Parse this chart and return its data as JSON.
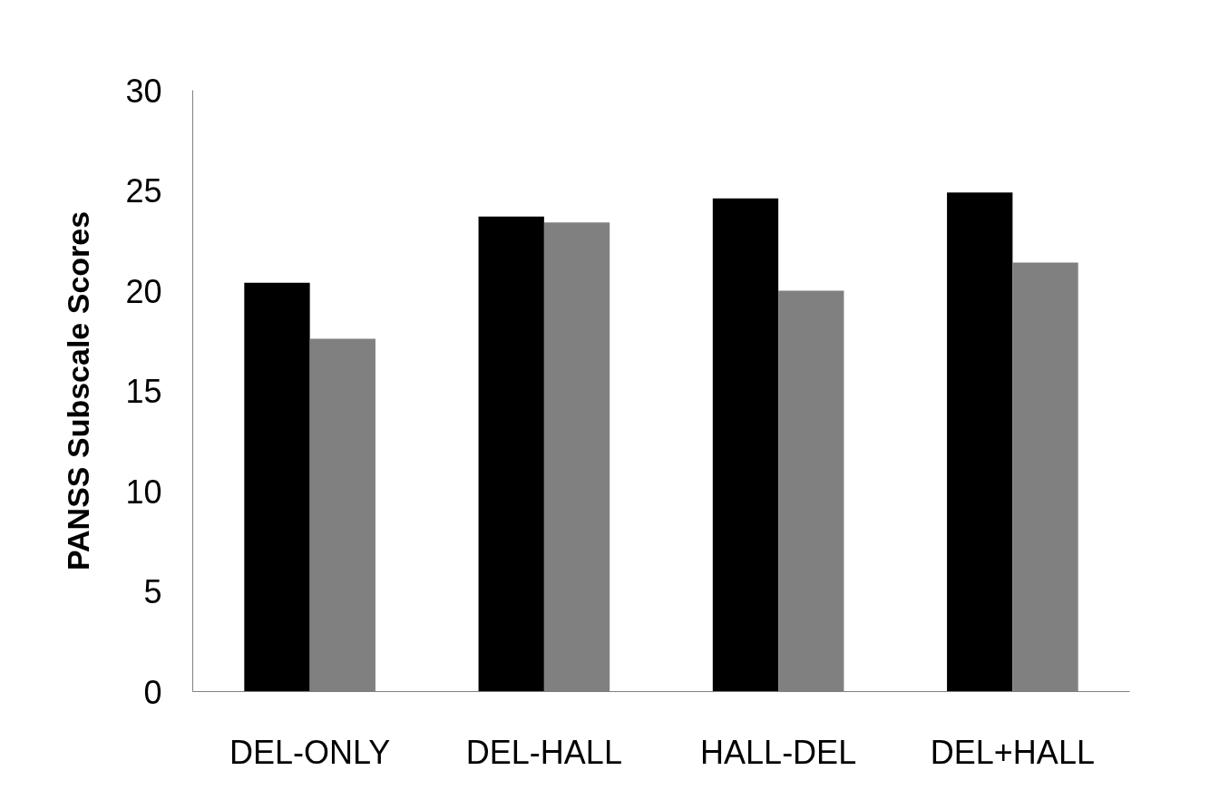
{
  "chart_data": {
    "type": "bar",
    "ylabel": "PANSS Subscale Scores",
    "categories": [
      "DEL-ONLY",
      "DEL-HALL",
      "HALL-DEL",
      "DEL+HALL"
    ],
    "series": [
      {
        "color": "#000000",
        "values": [
          20.4,
          23.7,
          24.6,
          24.9
        ]
      },
      {
        "color": "#808080",
        "values": [
          17.6,
          23.4,
          20.0,
          21.4
        ]
      }
    ],
    "ylim": [
      0,
      30
    ],
    "yticks": [
      0,
      5,
      10,
      15,
      20,
      25,
      30
    ]
  }
}
